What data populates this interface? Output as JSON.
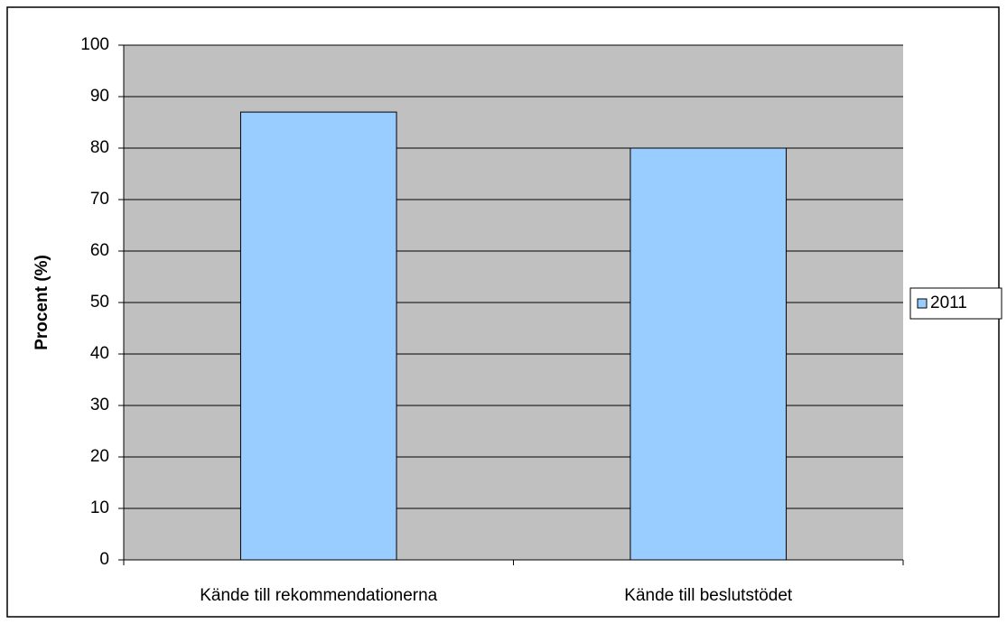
{
  "chart_data": {
    "type": "bar",
    "ylabel": "Procent (%)",
    "categories": [
      "Kände till rekommendationerna",
      "Kände till beslutstödet"
    ],
    "series": [
      {
        "name": "2011",
        "color": "#99ccff",
        "values": [
          87,
          80
        ]
      }
    ],
    "ylim": [
      0,
      100
    ],
    "yticks": [
      0,
      10,
      20,
      30,
      40,
      50,
      60,
      70,
      80,
      90,
      100
    ],
    "grid": true,
    "legend": "right"
  }
}
